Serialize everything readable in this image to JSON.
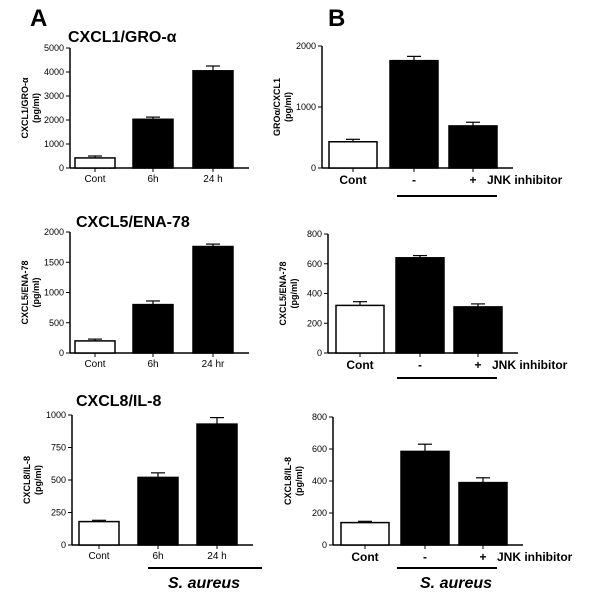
{
  "panel_letters": [
    "A",
    "B"
  ],
  "footer": {
    "a_label": "S. aureus",
    "b_label": "S. aureus"
  },
  "chart_data": [
    {
      "type": "bar",
      "panel": "A",
      "title": "CXCL1/GRO-α",
      "ylabel": [
        "CXCL1/GRO-α",
        "(pg/ml)"
      ],
      "categories": [
        "Cont",
        "6h",
        "24 h"
      ],
      "values": [
        420,
        2030,
        4050
      ],
      "errors": [
        80,
        90,
        200
      ],
      "fills": [
        "#ffffff",
        "#000000",
        "#000000"
      ],
      "ylim": [
        0,
        5000
      ],
      "yticks": [
        0,
        1000,
        2000,
        3000,
        4000,
        5000
      ]
    },
    {
      "type": "bar",
      "panel": "B",
      "title": "",
      "ylabel": [
        "GROα/CXCL1",
        "(pg/ml)"
      ],
      "categories": [
        "Cont",
        "-",
        "+"
      ],
      "extra_label": "JNK inhibitor",
      "values": [
        430,
        1760,
        690
      ],
      "errors": [
        40,
        70,
        60
      ],
      "fills": [
        "#ffffff",
        "#000000",
        "#000000"
      ],
      "ylim": [
        0,
        2000
      ],
      "yticks": [
        0,
        1000,
        2000
      ]
    },
    {
      "type": "bar",
      "panel": "A",
      "title": "CXCL5/ENA-78",
      "ylabel": [
        "CXCL5/ENA-78",
        "(pg/ml)"
      ],
      "categories": [
        "Cont",
        "6h",
        "24 hr"
      ],
      "values": [
        200,
        800,
        1760
      ],
      "errors": [
        30,
        60,
        40
      ],
      "fills": [
        "#ffffff",
        "#000000",
        "#000000"
      ],
      "ylim": [
        0,
        2000
      ],
      "yticks": [
        0,
        500,
        1000,
        1500,
        2000
      ]
    },
    {
      "type": "bar",
      "panel": "B",
      "title": "",
      "ylabel": [
        "CXCL5/ENA-78",
        "(pg/ml)"
      ],
      "categories": [
        "Cont",
        "-",
        "+"
      ],
      "extra_label": "JNK inhibitor",
      "values": [
        320,
        640,
        310
      ],
      "errors": [
        25,
        15,
        20
      ],
      "fills": [
        "#ffffff",
        "#000000",
        "#000000"
      ],
      "ylim": [
        0,
        800
      ],
      "yticks": [
        0,
        200,
        400,
        600,
        800
      ]
    },
    {
      "type": "bar",
      "panel": "A",
      "title": "CXCL8/IL-8",
      "ylabel": [
        "CXCL8/IL-8",
        "(pg/ml)"
      ],
      "categories": [
        "Cont",
        "6h",
        "24 h"
      ],
      "values": [
        180,
        520,
        930
      ],
      "errors": [
        10,
        35,
        50
      ],
      "fills": [
        "#ffffff",
        "#000000",
        "#000000"
      ],
      "ylim": [
        0,
        1000
      ],
      "yticks": [
        0,
        250,
        500,
        750,
        1000
      ]
    },
    {
      "type": "bar",
      "panel": "B",
      "title": "",
      "ylabel": [
        "CXCL8/IL-8",
        "(pg/ml)"
      ],
      "categories": [
        "Cont",
        "-",
        "+"
      ],
      "extra_label": "JNK inhibitor",
      "values": [
        140,
        585,
        390
      ],
      "errors": [
        8,
        45,
        30
      ],
      "fills": [
        "#ffffff",
        "#000000",
        "#000000"
      ],
      "ylim": [
        0,
        800
      ],
      "yticks": [
        0,
        200,
        400,
        600,
        800
      ]
    }
  ]
}
